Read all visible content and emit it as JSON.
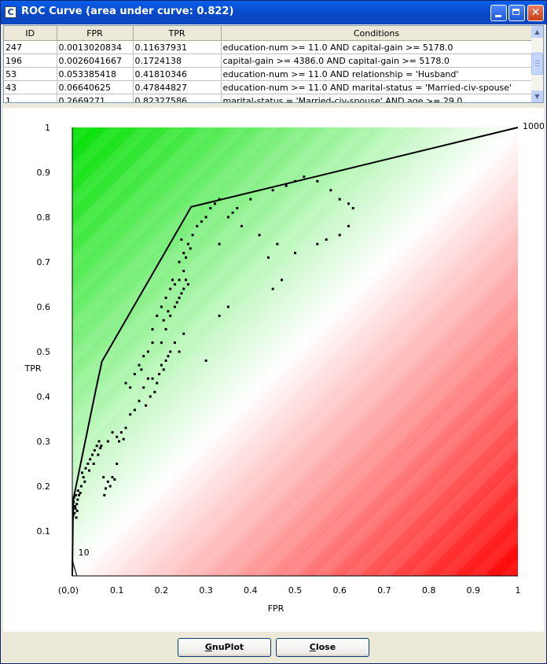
{
  "window": {
    "title": "ROC Curve (area under curve: 0.822)",
    "icon": "app-c-icon",
    "icon_letter": "C",
    "controls": [
      "minimize-icon",
      "maximize-icon",
      "close-icon"
    ]
  },
  "table": {
    "columns": [
      "ID",
      "FPR",
      "TPR",
      "Conditions"
    ],
    "rows": [
      [
        "247",
        "0.0013020834",
        "0.11637931",
        "education-num >= 11.0 AND capital-gain >= 5178.0"
      ],
      [
        "196",
        "0.0026041667",
        "0.1724138",
        "capital-gain >= 4386.0 AND capital-gain >= 5178.0"
      ],
      [
        "53",
        "0.053385418",
        "0.41810346",
        "education-num >= 11.0 AND relationship = 'Husband'"
      ],
      [
        "43",
        "0.06640625",
        "0.47844827",
        "education-num >= 11.0 AND marital-status = 'Married-civ-spouse'"
      ],
      [
        "1",
        "0.2669271",
        "0.82327586",
        "marital-status = 'Married-civ-spouse' AND age >= 29.0"
      ]
    ]
  },
  "chart_data": {
    "type": "scatter",
    "xlabel": "FPR",
    "ylabel": "TPR",
    "xlim": [
      0,
      1
    ],
    "ylim": [
      0,
      1
    ],
    "x_ticks": [
      "(0,0)",
      "0.1",
      "0.2",
      "0.3",
      "0.4",
      "0.5",
      "0.6",
      "0.7",
      "0.8",
      "0.9",
      "1"
    ],
    "y_ticks": [
      "0.1",
      "0.2",
      "0.3",
      "0.4",
      "0.5",
      "0.6",
      "0.7",
      "0.8",
      "0.9",
      "1"
    ],
    "annotations": [
      {
        "text": "1000",
        "x": 1.0,
        "y": 1.0
      },
      {
        "text": "10",
        "x": 0.01,
        "y": 0.035
      }
    ],
    "colors": {
      "upper": "#00e000",
      "lower": "#ff0000",
      "diagonal": "#ffffff",
      "curve": "#000000"
    },
    "hull": [
      [
        0.0,
        0.0
      ],
      [
        0.0013,
        0.116
      ],
      [
        0.0026,
        0.172
      ],
      [
        0.0534,
        0.418
      ],
      [
        0.0664,
        0.478
      ],
      [
        0.2669,
        0.823
      ],
      [
        1.0,
        1.0
      ]
    ],
    "hull_low_tail": [
      [
        0.0,
        0.0
      ],
      [
        0.0,
        0.035
      ],
      [
        0.01,
        0.0
      ]
    ],
    "points": [
      [
        0.002,
        0.135
      ],
      [
        0.005,
        0.14
      ],
      [
        0.007,
        0.15
      ],
      [
        0.01,
        0.16
      ],
      [
        0.012,
        0.17
      ],
      [
        0.004,
        0.175
      ],
      [
        0.008,
        0.18
      ],
      [
        0.015,
        0.18
      ],
      [
        0.006,
        0.155
      ],
      [
        0.011,
        0.145
      ],
      [
        0.003,
        0.165
      ],
      [
        0.018,
        0.185
      ],
      [
        0.013,
        0.19
      ],
      [
        0.009,
        0.13
      ],
      [
        0.02,
        0.2
      ],
      [
        0.025,
        0.22
      ],
      [
        0.022,
        0.23
      ],
      [
        0.03,
        0.24
      ],
      [
        0.035,
        0.25
      ],
      [
        0.028,
        0.21
      ],
      [
        0.04,
        0.26
      ],
      [
        0.045,
        0.27
      ],
      [
        0.05,
        0.28
      ],
      [
        0.055,
        0.29
      ],
      [
        0.06,
        0.3
      ],
      [
        0.048,
        0.25
      ],
      [
        0.038,
        0.235
      ],
      [
        0.058,
        0.27
      ],
      [
        0.065,
        0.29
      ],
      [
        0.063,
        0.285
      ],
      [
        0.08,
        0.3
      ],
      [
        0.09,
        0.32
      ],
      [
        0.1,
        0.31
      ],
      [
        0.105,
        0.3
      ],
      [
        0.11,
        0.32
      ],
      [
        0.115,
        0.305
      ],
      [
        0.12,
        0.33
      ],
      [
        0.13,
        0.36
      ],
      [
        0.14,
        0.37
      ],
      [
        0.15,
        0.39
      ],
      [
        0.16,
        0.42
      ],
      [
        0.17,
        0.44
      ],
      [
        0.18,
        0.44
      ],
      [
        0.165,
        0.38
      ],
      [
        0.175,
        0.4
      ],
      [
        0.185,
        0.41
      ],
      [
        0.19,
        0.43
      ],
      [
        0.195,
        0.45
      ],
      [
        0.2,
        0.47
      ],
      [
        0.21,
        0.48
      ],
      [
        0.22,
        0.5
      ],
      [
        0.205,
        0.46
      ],
      [
        0.215,
        0.49
      ],
      [
        0.23,
        0.52
      ],
      [
        0.25,
        0.54
      ],
      [
        0.24,
        0.5
      ],
      [
        0.1,
        0.25
      ],
      [
        0.09,
        0.22
      ],
      [
        0.08,
        0.21
      ],
      [
        0.085,
        0.2
      ],
      [
        0.095,
        0.215
      ],
      [
        0.075,
        0.195
      ],
      [
        0.07,
        0.22
      ],
      [
        0.072,
        0.18
      ],
      [
        0.13,
        0.42
      ],
      [
        0.12,
        0.43
      ],
      [
        0.14,
        0.45
      ],
      [
        0.15,
        0.47
      ],
      [
        0.16,
        0.49
      ],
      [
        0.17,
        0.5
      ],
      [
        0.155,
        0.46
      ],
      [
        0.18,
        0.52
      ],
      [
        0.2,
        0.52
      ],
      [
        0.21,
        0.55
      ],
      [
        0.22,
        0.58
      ],
      [
        0.23,
        0.6
      ],
      [
        0.24,
        0.62
      ],
      [
        0.235,
        0.61
      ],
      [
        0.245,
        0.63
      ],
      [
        0.25,
        0.64
      ],
      [
        0.26,
        0.65
      ],
      [
        0.255,
        0.66
      ],
      [
        0.23,
        0.65
      ],
      [
        0.24,
        0.66
      ],
      [
        0.18,
        0.55
      ],
      [
        0.19,
        0.58
      ],
      [
        0.2,
        0.6
      ],
      [
        0.21,
        0.62
      ],
      [
        0.22,
        0.64
      ],
      [
        0.225,
        0.66
      ],
      [
        0.205,
        0.57
      ],
      [
        0.215,
        0.59
      ],
      [
        0.24,
        0.7
      ],
      [
        0.25,
        0.72
      ],
      [
        0.26,
        0.74
      ],
      [
        0.265,
        0.73
      ],
      [
        0.255,
        0.71
      ],
      [
        0.245,
        0.75
      ],
      [
        0.27,
        0.76
      ],
      [
        0.28,
        0.78
      ],
      [
        0.3,
        0.8
      ],
      [
        0.31,
        0.82
      ],
      [
        0.32,
        0.83
      ],
      [
        0.33,
        0.84
      ],
      [
        0.29,
        0.79
      ],
      [
        0.25,
        0.68
      ],
      [
        0.35,
        0.8
      ],
      [
        0.36,
        0.81
      ],
      [
        0.37,
        0.82
      ],
      [
        0.4,
        0.84
      ],
      [
        0.45,
        0.86
      ],
      [
        0.48,
        0.87
      ],
      [
        0.5,
        0.88
      ],
      [
        0.52,
        0.89
      ],
      [
        0.55,
        0.88
      ],
      [
        0.58,
        0.86
      ],
      [
        0.6,
        0.84
      ],
      [
        0.62,
        0.83
      ],
      [
        0.63,
        0.82
      ],
      [
        0.62,
        0.78
      ],
      [
        0.6,
        0.76
      ],
      [
        0.57,
        0.75
      ],
      [
        0.55,
        0.74
      ],
      [
        0.5,
        0.72
      ],
      [
        0.46,
        0.74
      ],
      [
        0.44,
        0.71
      ],
      [
        0.42,
        0.76
      ],
      [
        0.38,
        0.78
      ],
      [
        0.33,
        0.74
      ],
      [
        0.33,
        0.58
      ],
      [
        0.35,
        0.6
      ],
      [
        0.3,
        0.48
      ],
      [
        0.45,
        0.64
      ],
      [
        0.47,
        0.66
      ]
    ]
  },
  "buttons": {
    "gnuplot": {
      "prefix": "",
      "mnemonic": "G",
      "rest": "nuPlot"
    },
    "close": {
      "prefix": "",
      "mnemonic": "C",
      "rest": "lose"
    }
  }
}
